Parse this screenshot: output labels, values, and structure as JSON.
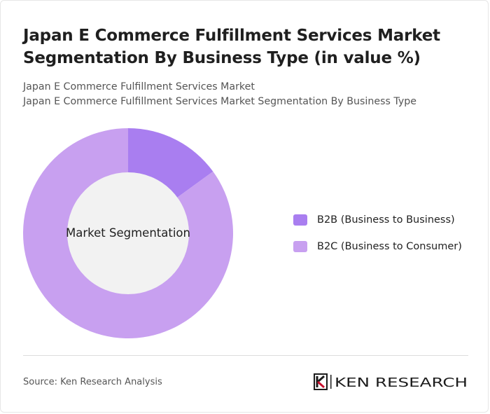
{
  "header": {
    "title": "Japan E Commerce Fulfillment Services Market Segmentation By Business Type (in value %)",
    "subtitle_line1": "Japan E Commerce Fulfillment Services Market",
    "subtitle_line2": "Japan E Commerce Fulfillment Services Market Segmentation By Business Type"
  },
  "chart_data": {
    "type": "pie",
    "variant": "donut",
    "center_label": "Market Segmentation",
    "categories": [
      "B2B (Business to Business)",
      "B2C (Business to Consumer)"
    ],
    "values": [
      15,
      85
    ],
    "colors": [
      "#a97ef0",
      "#c8a0f0"
    ],
    "center_color": "#f2f2f2",
    "legend_position": "right"
  },
  "footer": {
    "source": "Source: Ken Research Analysis",
    "logo_text": "KEN RESEARCH",
    "logo_icon": "ken-k-emblem"
  }
}
